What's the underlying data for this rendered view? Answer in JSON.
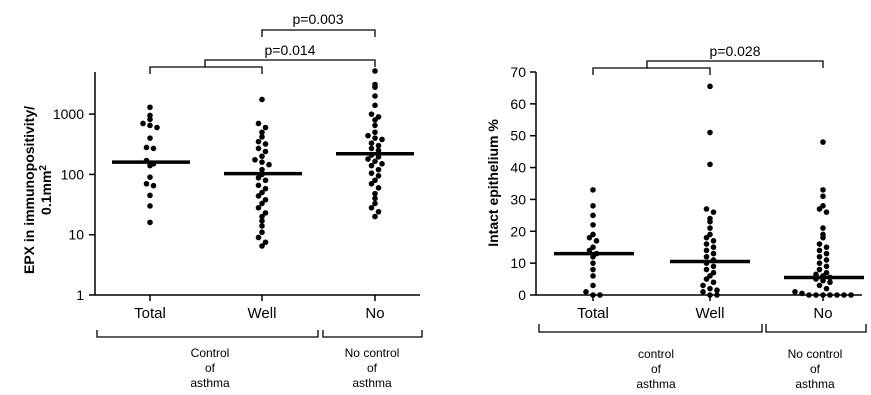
{
  "chart_data": [
    {
      "type": "scatter",
      "ylabel_line1": "EPX in immunopositivity/",
      "ylabel_line2": "0.1mm",
      "ylabel_sup": "2",
      "yscale": "log",
      "ylim": [
        1,
        5000
      ],
      "yticks": [
        1,
        10,
        100,
        1000
      ],
      "ytick_labels": [
        "1",
        "10",
        "100",
        "1000"
      ],
      "categories": [
        "Total",
        "Well",
        "No"
      ],
      "medians": [
        160,
        103,
        220
      ],
      "points": [
        [
          1300,
          950,
          820,
          700,
          650,
          600,
          400,
          280,
          270,
          170,
          150,
          140,
          90,
          70,
          65,
          45,
          30,
          16
        ],
        [
          1750,
          700,
          600,
          500,
          420,
          350,
          320,
          270,
          240,
          200,
          175,
          160,
          145,
          120,
          100,
          88,
          80,
          66,
          58,
          50,
          44,
          38,
          33,
          28,
          23,
          20,
          17,
          14,
          11,
          9,
          7.5,
          6.5
        ],
        [
          5200,
          3100,
          2800,
          2000,
          1400,
          1000,
          900,
          800,
          650,
          500,
          440,
          400,
          380,
          330,
          300,
          270,
          250,
          210,
          195,
          180,
          165,
          150,
          140,
          120,
          105,
          95,
          80,
          70,
          60,
          48,
          40,
          33,
          28,
          24,
          20
        ]
      ],
      "brackets": [
        {
          "label": "p=0.014",
          "from": "Total",
          "to": "No"
        },
        {
          "label": "p=0.003",
          "from": "Well",
          "to": "No"
        }
      ],
      "groups": [
        {
          "lines": [
            "Control",
            "of",
            "asthma"
          ],
          "categories": [
            "Total",
            "Well"
          ]
        },
        {
          "lines": [
            "No control",
            "of",
            "asthma"
          ],
          "categories": [
            "No"
          ]
        }
      ]
    },
    {
      "type": "scatter",
      "ylabel": "Intact epithelium %",
      "ylim": [
        0,
        70
      ],
      "yticks": [
        0,
        10,
        20,
        30,
        40,
        50,
        60,
        70
      ],
      "ytick_labels": [
        "0",
        "10",
        "20",
        "30",
        "40",
        "50",
        "60",
        "70"
      ],
      "categories": [
        "Total",
        "Well",
        "No"
      ],
      "medians": [
        13,
        10.5,
        5.5
      ],
      "points": [
        [
          33,
          28,
          25,
          22,
          19,
          18,
          17,
          15,
          14,
          13,
          12,
          10,
          8,
          6,
          3,
          1,
          0,
          0
        ],
        [
          65.5,
          51,
          41,
          27,
          26,
          24,
          23,
          21,
          19,
          18,
          17,
          16,
          15,
          14,
          13,
          12,
          11,
          10,
          9,
          8,
          7,
          6,
          5,
          4,
          3,
          2,
          1.5,
          1,
          0,
          0
        ],
        [
          48,
          33,
          31,
          28,
          27,
          26,
          21,
          19,
          18,
          16,
          15,
          14,
          13,
          12,
          11,
          10,
          9,
          8,
          7,
          6.5,
          6,
          5.5,
          5,
          4.5,
          4,
          3,
          2,
          1,
          0.5,
          0,
          0,
          0,
          0,
          0,
          0,
          0
        ]
      ],
      "brackets": [
        {
          "label": "p=0.028",
          "from": "Total",
          "to": "No"
        }
      ],
      "groups": [
        {
          "lines": [
            "control",
            "of",
            "asthma"
          ],
          "categories": [
            "Total",
            "Well"
          ]
        },
        {
          "lines": [
            "No control",
            "of",
            "asthma"
          ],
          "categories": [
            "No"
          ]
        }
      ]
    }
  ]
}
